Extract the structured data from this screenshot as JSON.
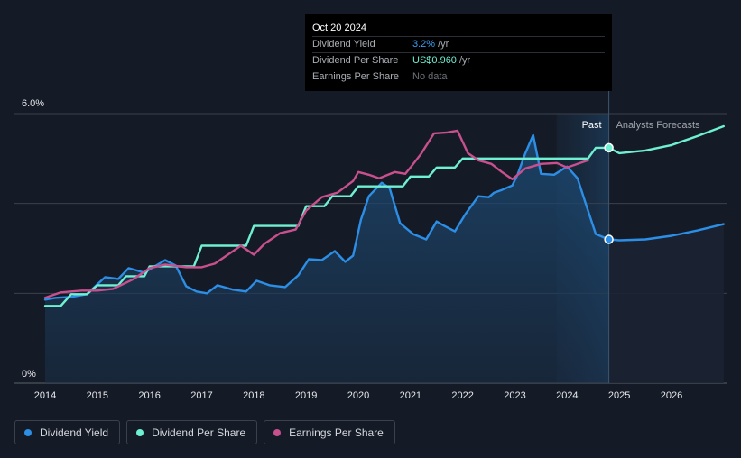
{
  "tooltip": {
    "date": "Oct 20 2024",
    "rows": [
      {
        "label": "Dividend Yield",
        "value": "3.2%",
        "unit": "/yr"
      },
      {
        "label": "Dividend Per Share",
        "value": "US$0.960",
        "unit": "/yr"
      },
      {
        "label": "Earnings Per Share",
        "value": "No data"
      }
    ]
  },
  "legend": [
    {
      "label": "Dividend Yield",
      "color": "#2d8ee6"
    },
    {
      "label": "Dividend Per Share",
      "color": "#6ff0d2"
    },
    {
      "label": "Earnings Per Share",
      "color": "#c8508e"
    }
  ],
  "chart_data": {
    "type": "line",
    "x_range": [
      2013.8,
      2027.0
    ],
    "y_range": [
      0,
      6.0
    ],
    "y_tick_labels": [
      "6.0%",
      "0%"
    ],
    "x_ticks": [
      2014,
      2015,
      2016,
      2017,
      2018,
      2019,
      2020,
      2021,
      2022,
      2023,
      2024,
      2025,
      2026
    ],
    "divider_x": 2024.8,
    "past_label": "Past",
    "forecast_label": "Analysts Forecasts",
    "series": [
      {
        "name": "Dividend Yield",
        "color": "#2d8ee6",
        "filled": true,
        "points": [
          [
            2014.0,
            1.86
          ],
          [
            2014.2,
            1.9
          ],
          [
            2014.5,
            1.92
          ],
          [
            2014.8,
            1.98
          ],
          [
            2015.0,
            2.2
          ],
          [
            2015.15,
            2.36
          ],
          [
            2015.4,
            2.32
          ],
          [
            2015.6,
            2.56
          ],
          [
            2015.9,
            2.46
          ],
          [
            2016.1,
            2.6
          ],
          [
            2016.3,
            2.74
          ],
          [
            2016.5,
            2.62
          ],
          [
            2016.7,
            2.16
          ],
          [
            2016.9,
            2.04
          ],
          [
            2017.1,
            2.0
          ],
          [
            2017.3,
            2.18
          ],
          [
            2017.6,
            2.08
          ],
          [
            2017.85,
            2.04
          ],
          [
            2018.05,
            2.28
          ],
          [
            2018.3,
            2.18
          ],
          [
            2018.6,
            2.14
          ],
          [
            2018.85,
            2.4
          ],
          [
            2019.05,
            2.76
          ],
          [
            2019.3,
            2.74
          ],
          [
            2019.55,
            2.94
          ],
          [
            2019.75,
            2.7
          ],
          [
            2019.9,
            2.84
          ],
          [
            2020.05,
            3.64
          ],
          [
            2020.2,
            4.16
          ],
          [
            2020.45,
            4.46
          ],
          [
            2020.6,
            4.34
          ],
          [
            2020.8,
            3.56
          ],
          [
            2021.05,
            3.32
          ],
          [
            2021.3,
            3.2
          ],
          [
            2021.5,
            3.6
          ],
          [
            2021.65,
            3.5
          ],
          [
            2021.85,
            3.38
          ],
          [
            2022.05,
            3.76
          ],
          [
            2022.3,
            4.16
          ],
          [
            2022.5,
            4.14
          ],
          [
            2022.6,
            4.24
          ],
          [
            2022.75,
            4.3
          ],
          [
            2022.95,
            4.4
          ],
          [
            2023.05,
            4.64
          ],
          [
            2023.2,
            5.12
          ],
          [
            2023.35,
            5.52
          ],
          [
            2023.5,
            4.66
          ],
          [
            2023.75,
            4.64
          ],
          [
            2024.0,
            4.82
          ],
          [
            2024.2,
            4.56
          ],
          [
            2024.35,
            4.02
          ],
          [
            2024.55,
            3.32
          ],
          [
            2024.8,
            3.2
          ]
        ]
      },
      {
        "name": "Dividend Yield Forecast",
        "color": "#2d8ee6",
        "filled": false,
        "points": [
          [
            2024.8,
            3.2
          ],
          [
            2025.0,
            3.18
          ],
          [
            2025.5,
            3.2
          ],
          [
            2026.0,
            3.28
          ],
          [
            2026.5,
            3.4
          ],
          [
            2027.0,
            3.54
          ]
        ]
      },
      {
        "name": "Dividend Per Share",
        "color": "#6ff0d2",
        "filled": false,
        "points": [
          [
            2014.0,
            1.72
          ],
          [
            2014.3,
            1.72
          ],
          [
            2014.5,
            1.98
          ],
          [
            2014.8,
            1.98
          ],
          [
            2015.0,
            2.18
          ],
          [
            2015.4,
            2.18
          ],
          [
            2015.55,
            2.38
          ],
          [
            2015.9,
            2.38
          ],
          [
            2016.0,
            2.6
          ],
          [
            2016.85,
            2.6
          ],
          [
            2017.0,
            3.06
          ],
          [
            2017.85,
            3.06
          ],
          [
            2018.0,
            3.5
          ],
          [
            2018.85,
            3.5
          ],
          [
            2019.0,
            3.94
          ],
          [
            2019.35,
            3.94
          ],
          [
            2019.5,
            4.16
          ],
          [
            2019.85,
            4.16
          ],
          [
            2020.0,
            4.38
          ],
          [
            2020.85,
            4.38
          ],
          [
            2021.0,
            4.6
          ],
          [
            2021.35,
            4.6
          ],
          [
            2021.5,
            4.8
          ],
          [
            2021.85,
            4.8
          ],
          [
            2022.0,
            5.0
          ],
          [
            2024.4,
            5.0
          ],
          [
            2024.55,
            5.24
          ],
          [
            2024.8,
            5.24
          ]
        ]
      },
      {
        "name": "Dividend Per Share Forecast",
        "color": "#6ff0d2",
        "filled": false,
        "points": [
          [
            2024.8,
            5.24
          ],
          [
            2025.0,
            5.12
          ],
          [
            2025.5,
            5.18
          ],
          [
            2026.0,
            5.3
          ],
          [
            2026.5,
            5.5
          ],
          [
            2027.0,
            5.72
          ]
        ]
      },
      {
        "name": "Earnings Per Share",
        "color": "#c8508e",
        "filled": false,
        "points": [
          [
            2014.0,
            1.9
          ],
          [
            2014.3,
            2.02
          ],
          [
            2014.7,
            2.06
          ],
          [
            2015.0,
            2.06
          ],
          [
            2015.3,
            2.1
          ],
          [
            2015.7,
            2.32
          ],
          [
            2016.0,
            2.56
          ],
          [
            2016.3,
            2.64
          ],
          [
            2016.7,
            2.58
          ],
          [
            2017.0,
            2.58
          ],
          [
            2017.25,
            2.66
          ],
          [
            2017.5,
            2.86
          ],
          [
            2017.75,
            3.06
          ],
          [
            2018.0,
            2.86
          ],
          [
            2018.2,
            3.1
          ],
          [
            2018.5,
            3.34
          ],
          [
            2018.8,
            3.42
          ],
          [
            2019.0,
            3.84
          ],
          [
            2019.3,
            4.14
          ],
          [
            2019.6,
            4.24
          ],
          [
            2019.9,
            4.5
          ],
          [
            2020.0,
            4.7
          ],
          [
            2020.2,
            4.64
          ],
          [
            2020.4,
            4.56
          ],
          [
            2020.7,
            4.7
          ],
          [
            2020.9,
            4.66
          ],
          [
            2021.0,
            4.8
          ],
          [
            2021.2,
            5.1
          ],
          [
            2021.45,
            5.56
          ],
          [
            2021.7,
            5.58
          ],
          [
            2021.9,
            5.62
          ],
          [
            2022.1,
            5.12
          ],
          [
            2022.3,
            4.96
          ],
          [
            2022.55,
            4.88
          ],
          [
            2022.75,
            4.7
          ],
          [
            2022.95,
            4.54
          ],
          [
            2023.2,
            4.78
          ],
          [
            2023.5,
            4.88
          ],
          [
            2023.8,
            4.9
          ],
          [
            2024.0,
            4.8
          ],
          [
            2024.2,
            4.88
          ],
          [
            2024.4,
            4.96
          ]
        ]
      }
    ],
    "markers": [
      {
        "x": 2024.8,
        "y": 3.2,
        "color": "#2d8ee6"
      },
      {
        "x": 2024.8,
        "y": 5.24,
        "color": "#6ff0d2"
      }
    ]
  }
}
